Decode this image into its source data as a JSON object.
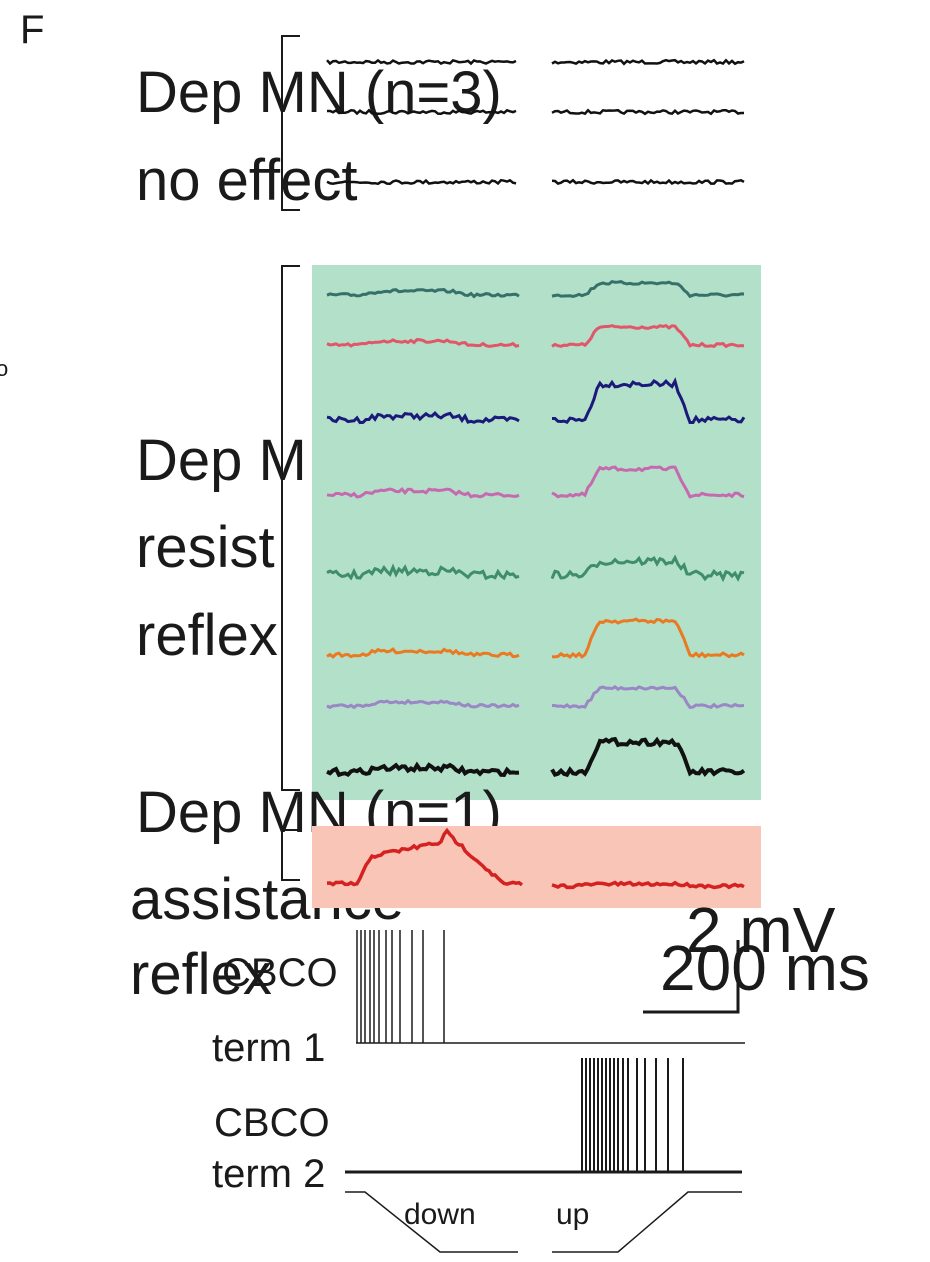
{
  "panel": {
    "letter": "F",
    "stray_char": "o"
  },
  "groups": {
    "no_effect": {
      "line1": "Dep MN (n=3)",
      "line2": "no effect"
    },
    "resistance": {
      "line1": "Dep M",
      "line2": "resist",
      "line3": "reflex"
    },
    "assistance": {
      "line1": "Dep MN (n=1)",
      "line2": "assistance",
      "line3": "reflex"
    }
  },
  "scale_bar": {
    "voltage": "2 mV",
    "time": "200 ms"
  },
  "stim_traces": [
    {
      "name1": "CBCO",
      "name2": "term 1",
      "line1_key": "cbco",
      "line2_key": "term"
    },
    {
      "name1": "CBCO",
      "name2": "term 2"
    }
  ],
  "movement": {
    "down_label": "down",
    "up_label": "up"
  },
  "colors": {
    "resistance_bg": "#b3e0c9",
    "assistance_bg": "#f8c5b6",
    "traces": [
      "#37706a",
      "#e0566a",
      "#1b1a7a",
      "#c66ab0",
      "#3f8d6a",
      "#e97a21",
      "#9b86c6",
      "#111111"
    ],
    "assist_trace": "#d42222",
    "no_effect_trace": "#111111"
  }
}
